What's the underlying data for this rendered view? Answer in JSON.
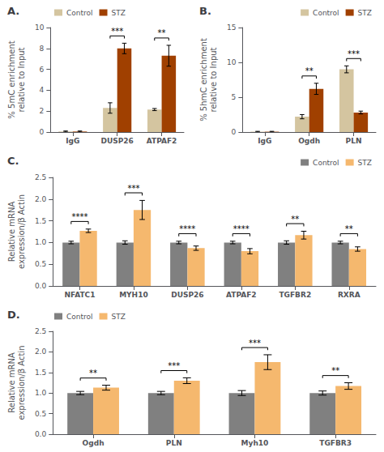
{
  "chart_data": [
    {
      "type": "bar",
      "title": "A.",
      "categories": [
        "IgG",
        "DUSP26",
        "ATPAF2"
      ],
      "series": [
        {
          "name": "Control",
          "color": "#d4c5a0",
          "values": [
            0.05,
            2.3,
            2.15
          ],
          "errors": [
            0.05,
            0.5,
            0.1
          ]
        },
        {
          "name": "STZ",
          "color": "#a04000",
          "values": [
            0.05,
            8.0,
            7.3
          ],
          "errors": [
            0.05,
            0.5,
            1.0
          ]
        }
      ],
      "ylabel": "% 5mC enrichment\nrelative to Input",
      "ylim": [
        0,
        10
      ],
      "yticks": [
        0,
        2,
        4,
        6,
        8,
        10
      ],
      "annotations": [
        null,
        "***",
        "**"
      ],
      "legend": "upper left",
      "grid": false
    },
    {
      "type": "bar",
      "title": "B.",
      "categories": [
        "IgG",
        "Ogdh",
        "PLN"
      ],
      "series": [
        {
          "name": "Control",
          "color": "#d4c5a0",
          "values": [
            0.05,
            2.2,
            9.0
          ],
          "errors": [
            0.05,
            0.3,
            0.5
          ]
        },
        {
          "name": "STZ",
          "color": "#a04000",
          "values": [
            0.05,
            6.2,
            2.8
          ],
          "errors": [
            0.05,
            0.8,
            0.2
          ]
        }
      ],
      "ylabel": "% 5hmC enrichment\nrelative to Input",
      "ylim": [
        0,
        15
      ],
      "yticks": [
        0,
        5,
        10,
        15
      ],
      "annotations": [
        null,
        "**",
        "***"
      ],
      "legend": "upper right",
      "grid": false
    },
    {
      "type": "bar",
      "title": "C.",
      "categories": [
        "NFATC1",
        "MYH10",
        "DUSP26",
        "ATPAF2",
        "TGFBR2",
        "RXRA"
      ],
      "series": [
        {
          "name": "Control",
          "color": "#808080",
          "values": [
            1.0,
            1.0,
            1.0,
            1.0,
            1.0,
            1.0
          ],
          "errors": [
            0.03,
            0.04,
            0.03,
            0.03,
            0.04,
            0.03
          ]
        },
        {
          "name": "STZ",
          "color": "#f5b86e",
          "values": [
            1.27,
            1.75,
            0.87,
            0.8,
            1.17,
            0.85
          ],
          "errors": [
            0.04,
            0.22,
            0.05,
            0.06,
            0.09,
            0.05
          ]
        }
      ],
      "ylabel": "Relative mRNA\nexpression/β Actin",
      "ylim": [
        0.0,
        2.5
      ],
      "yticks": [
        {
          "value": 0,
          "label": "0.0"
        },
        0.5,
        {
          "value": 1,
          "label": "1.0"
        },
        1.5,
        {
          "value": 2,
          "label": "2.0"
        },
        2.5
      ],
      "annotations": [
        "****",
        "***",
        "****",
        "****",
        "**",
        "**"
      ],
      "legend": "upper right",
      "grid": false
    },
    {
      "type": "bar",
      "title": "D.",
      "categories": [
        "Ogdh",
        "PLN",
        "Myh10",
        "TGFBR3"
      ],
      "series": [
        {
          "name": "Control",
          "color": "#808080",
          "values": [
            1.0,
            1.0,
            1.0,
            1.0
          ],
          "errors": [
            0.04,
            0.04,
            0.06,
            0.05
          ]
        },
        {
          "name": "STZ",
          "color": "#f5b86e",
          "values": [
            1.13,
            1.3,
            1.75,
            1.17
          ],
          "errors": [
            0.06,
            0.07,
            0.18,
            0.08
          ]
        }
      ],
      "ylabel": "Relative mRNA\nexpression/β Actin",
      "ylim": [
        0.0,
        2.5
      ],
      "yticks": [
        {
          "value": 0,
          "label": "0.0"
        },
        0.5,
        {
          "value": 1,
          "label": "1.0"
        },
        1.5,
        {
          "value": 2,
          "label": "2.0"
        },
        2.5
      ],
      "annotations": [
        "**",
        "***",
        "***",
        "**"
      ],
      "legend": "upper left",
      "grid": false
    }
  ]
}
